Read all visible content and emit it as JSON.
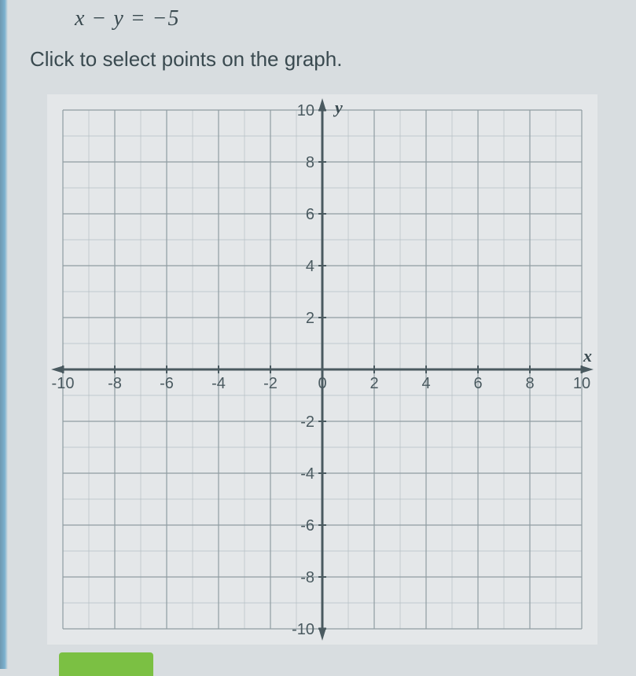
{
  "equation": "x − y = −5",
  "instruction": "Click to select points on the graph.",
  "graph": {
    "type": "cartesian-grid",
    "xlim": [
      -10,
      10
    ],
    "ylim": [
      -10,
      10
    ],
    "tick_step": 2,
    "minor_step": 1,
    "x_axis_label": "x",
    "y_axis_label": "y",
    "x_ticks": [
      -10,
      -8,
      -6,
      -4,
      -2,
      0,
      2,
      4,
      6,
      8,
      10
    ],
    "y_ticks": [
      -10,
      -8,
      -6,
      -4,
      -2,
      2,
      4,
      6,
      8,
      10
    ],
    "background_color": "#e4e7e9",
    "minor_grid_color": "#b5bfc4",
    "major_grid_color": "#8f9ca2",
    "axis_color": "#4a5a60",
    "label_color": "#4a5a60",
    "axis_width": 3,
    "major_grid_width": 1.2,
    "minor_grid_width": 0.7,
    "label_fontsize": 20
  }
}
